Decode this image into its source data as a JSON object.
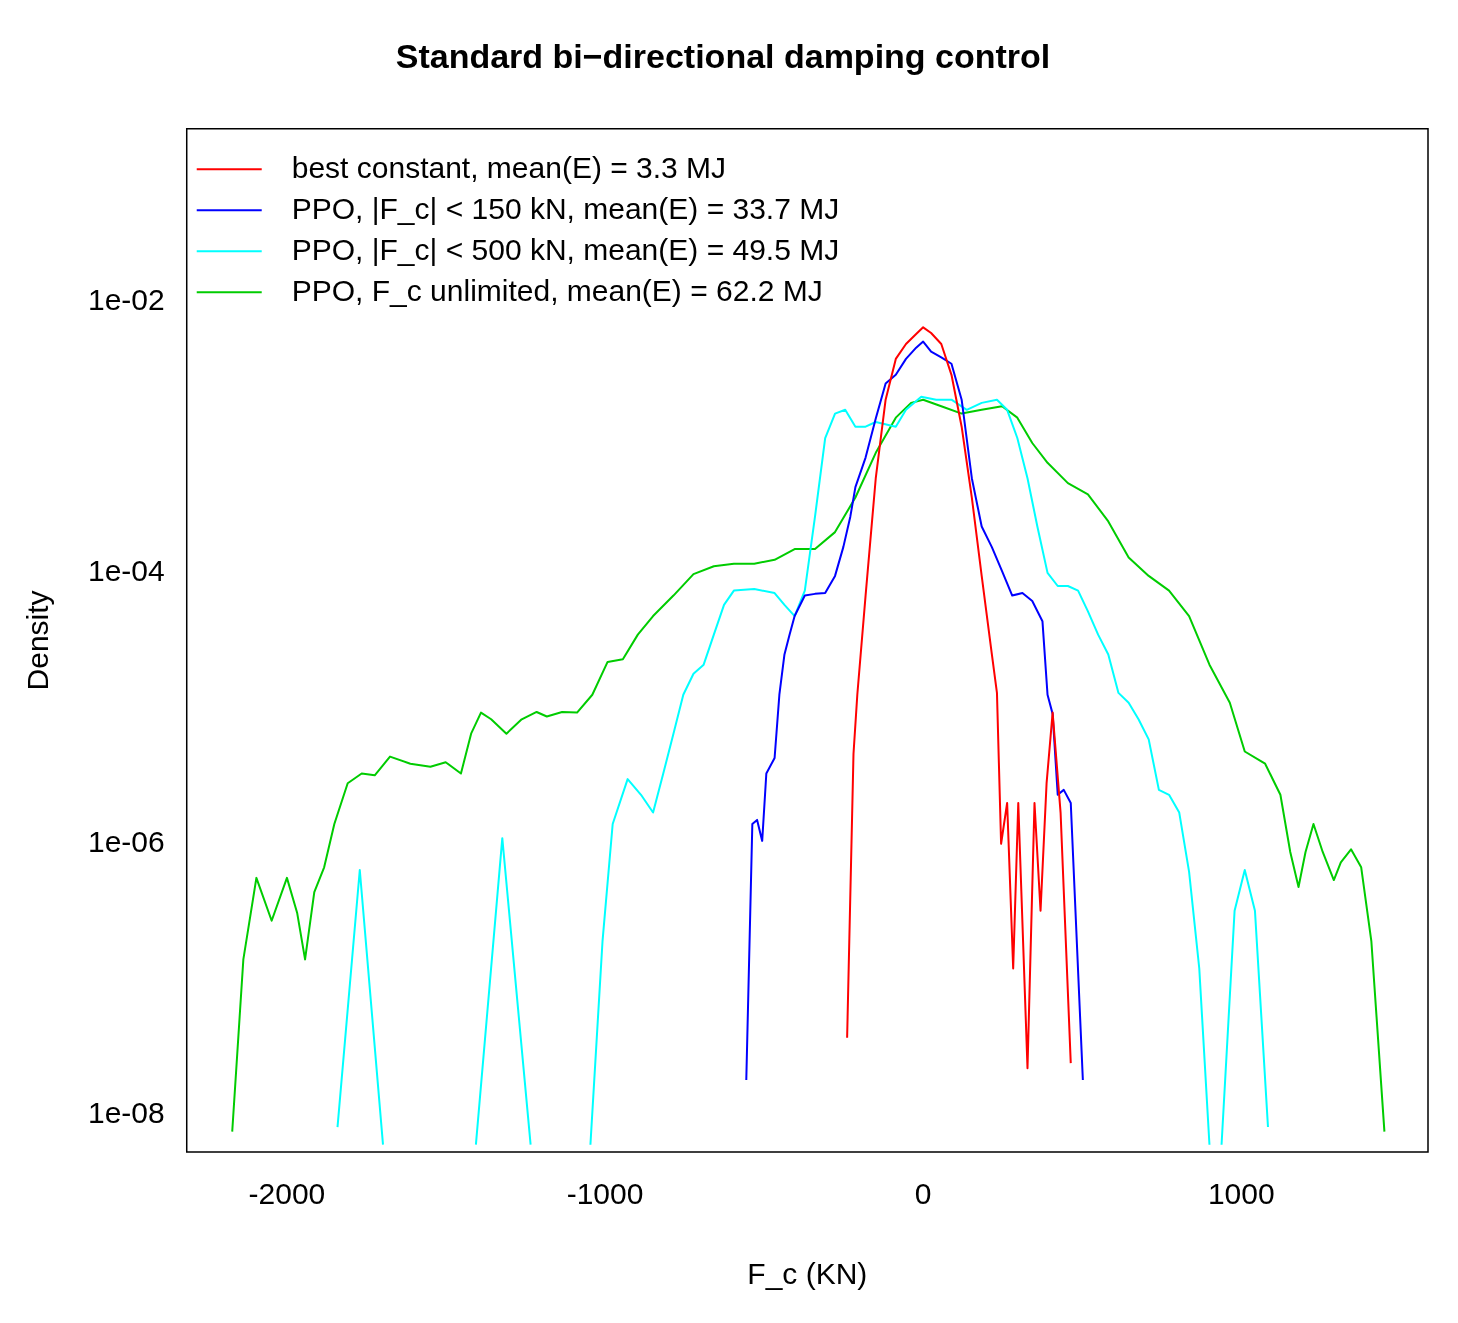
{
  "chart_data": {
    "type": "line",
    "title": "Standard bi−directional damping control",
    "xlabel": "F_c (KN)",
    "ylabel": "Density",
    "log": "y",
    "grid": false,
    "legend": "top left",
    "xlim": [
      -2315,
      1587
    ],
    "xticks": [
      -2000,
      -1000,
      0,
      1000
    ],
    "ylim": [
      5.3e-09,
      0.19
    ],
    "yticks": [
      {
        "value": 1e-08,
        "label": "1e-08"
      },
      {
        "value": 1e-06,
        "label": "1e-06"
      },
      {
        "value": 0.0001,
        "label": "1e-04"
      },
      {
        "value": 0.01,
        "label": "1e-02"
      }
    ],
    "series": [
      {
        "name": "best constant, mean(E) = 3.3 MJ",
        "color": "#ff0000",
        "x": [
          -239,
          -219,
          -207,
          -181,
          -149,
          -118,
          -86,
          -54,
          -22,
          0,
          25,
          57,
          89,
          121,
          153,
          184,
          216,
          232,
          245,
          264,
          283,
          299,
          328,
          350,
          369,
          388,
          407,
          432,
          464
        ],
        "values": [
          3.7e-08,
          4.6e-06,
          1.26e-05,
          6.8e-05,
          0.0005,
          0.0019,
          0.0038,
          0.0049,
          0.0058,
          0.0065,
          0.0059,
          0.0049,
          0.0029,
          0.0012,
          0.00036,
          9.5e-05,
          2.5e-05,
          1.3e-05,
          1e-06,
          2e-06,
          1.2e-07,
          2e-06,
          2.2e-08,
          2e-06,
          3.2e-07,
          2.8e-06,
          9.3e-06,
          1.7e-06,
          2.4e-08
        ]
      },
      {
        "name": "PPO, |F_c| < 150 kN, mean(E) = 33.7 MJ",
        "color": "#0000ff",
        "x": [
          -556,
          -537,
          -522,
          -506,
          -493,
          -467,
          -452,
          -436,
          -420,
          -404,
          -372,
          -340,
          -308,
          -277,
          -251,
          -229,
          -213,
          -181,
          -149,
          -118,
          -86,
          -54,
          -22,
          0,
          25,
          57,
          89,
          121,
          153,
          184,
          216,
          248,
          280,
          312,
          343,
          375,
          391,
          407,
          423,
          442,
          464,
          502
        ],
        "values": [
          1.8e-08,
          1.4e-06,
          1.5e-06,
          1.05e-06,
          3.3e-06,
          4.3e-06,
          1.26e-05,
          2.5e-05,
          3.5e-05,
          4.8e-05,
          6.8e-05,
          7e-05,
          7.1e-05,
          9.5e-05,
          0.000155,
          0.00026,
          0.00043,
          0.00071,
          0.00138,
          0.0025,
          0.0029,
          0.0038,
          0.0046,
          0.0051,
          0.0043,
          0.0039,
          0.0035,
          0.0019,
          0.0005,
          0.00022,
          0.000155,
          0.000103,
          6.8e-05,
          7.1e-05,
          6.2e-05,
          4.4e-05,
          1.26e-05,
          9.1e-06,
          2.3e-06,
          2.5e-06,
          2e-06,
          1.8e-08
        ]
      },
      {
        "name": "PPO, |F_c| < 500 kN, mean(E) = 49.5 MJ",
        "color": "#00ffff",
        "x": [
          -1841,
          -1771,
          -1698,
          -1550,
          -1406,
          -1323,
          -1234,
          -1140,
          -1046,
          -1008,
          -976,
          -929,
          -887,
          -849,
          -817,
          -785,
          -754,
          -722,
          -690,
          -658,
          -626,
          -595,
          -531,
          -467,
          -436,
          -404,
          -372,
          -340,
          -308,
          -277,
          -245,
          -213,
          -181,
          -149,
          -86,
          -54,
          -6,
          41,
          89,
          137,
          184,
          232,
          264,
          296,
          328,
          359,
          391,
          423,
          455,
          487,
          518,
          550,
          582,
          614,
          646,
          677,
          709,
          741,
          773,
          805,
          836,
          868,
          900,
          920,
          938,
          979,
          1011,
          1043,
          1084
        ],
        "values": [
          8.1e-09,
          6.4e-07,
          6e-09,
          null,
          6e-09,
          1.1e-06,
          6e-09,
          null,
          6e-09,
          1.9e-07,
          1.4e-06,
          3e-06,
          2.3e-06,
          1.7e-06,
          3.3e-06,
          6.5e-06,
          1.26e-05,
          1.8e-05,
          2.1e-05,
          3.5e-05,
          5.8e-05,
          7.4e-05,
          7.6e-05,
          7.1e-05,
          5.8e-05,
          4.8e-05,
          7.4e-05,
          0.00026,
          0.00099,
          0.0015,
          0.0016,
          0.0012,
          0.0012,
          0.0013,
          0.0012,
          0.0016,
          0.002,
          0.0019,
          0.0019,
          0.0016,
          0.0018,
          0.0019,
          0.0016,
          0.00099,
          0.0005,
          0.00022,
          0.0001,
          8e-05,
          8e-05,
          7.4e-05,
          5.2e-05,
          3.5e-05,
          2.5e-05,
          1.3e-05,
          1.1e-05,
          8.3e-06,
          5.9e-06,
          2.5e-06,
          2.3e-06,
          1.7e-06,
          6.2e-07,
          1.2e-07,
          6e-09,
          null,
          6e-09,
          3.2e-07,
          6.4e-07,
          3.2e-07,
          8.1e-09
        ]
      },
      {
        "name": "PPO, F_c unlimited, mean(E) = 62.2 MJ",
        "color": "#00cc00",
        "x": [
          -2172,
          -2137,
          -2096,
          -2048,
          -2000,
          -1968,
          -1943,
          -1914,
          -1883,
          -1851,
          -1809,
          -1765,
          -1724,
          -1676,
          -1612,
          -1549,
          -1501,
          -1453,
          -1421,
          -1390,
          -1358,
          -1310,
          -1262,
          -1215,
          -1183,
          -1135,
          -1088,
          -1040,
          -992,
          -944,
          -897,
          -849,
          -785,
          -722,
          -658,
          -595,
          -531,
          -467,
          -404,
          -340,
          -277,
          -213,
          -149,
          -86,
          -38,
          0,
          57,
          121,
          184,
          248,
          296,
          343,
          391,
          455,
          518,
          582,
          646,
          709,
          773,
          836,
          900,
          964,
          1011,
          1075,
          1123,
          1154,
          1180,
          1202,
          1227,
          1256,
          1291,
          1313,
          1345,
          1377,
          1409,
          1450
        ],
        "values": [
          7.5e-09,
          1.4e-07,
          5.6e-07,
          2.7e-07,
          5.6e-07,
          3.1e-07,
          1.4e-07,
          4.4e-07,
          6.7e-07,
          1.4e-06,
          2.8e-06,
          3.3e-06,
          3.2e-06,
          4.4e-06,
          3.9e-06,
          3.7e-06,
          4e-06,
          3.3e-06,
          6.5e-06,
          9.3e-06,
          8.3e-06,
          6.5e-06,
          8.3e-06,
          9.4e-06,
          8.7e-06,
          9.4e-06,
          9.3e-06,
          1.26e-05,
          2.2e-05,
          2.3e-05,
          3.5e-05,
          4.8e-05,
          6.8e-05,
          9.8e-05,
          0.000112,
          0.000117,
          0.000117,
          0.000125,
          0.00015,
          0.00015,
          0.0002,
          0.00036,
          0.00077,
          0.0014,
          0.0018,
          0.0019,
          0.0017,
          0.0015,
          0.0016,
          0.0017,
          0.0014,
          0.00091,
          0.00065,
          0.00046,
          0.00038,
          0.00024,
          0.00013,
          9.5e-05,
          7.4e-05,
          4.8e-05,
          2.1e-05,
          1.1e-05,
          4.8e-06,
          3.9e-06,
          2.3e-06,
          8.7e-07,
          4.8e-07,
          8.7e-07,
          1.4e-06,
          8.7e-07,
          5.4e-07,
          7.3e-07,
          9.1e-07,
          6.7e-07,
          1.9e-07,
          7.5e-09
        ]
      }
    ]
  }
}
